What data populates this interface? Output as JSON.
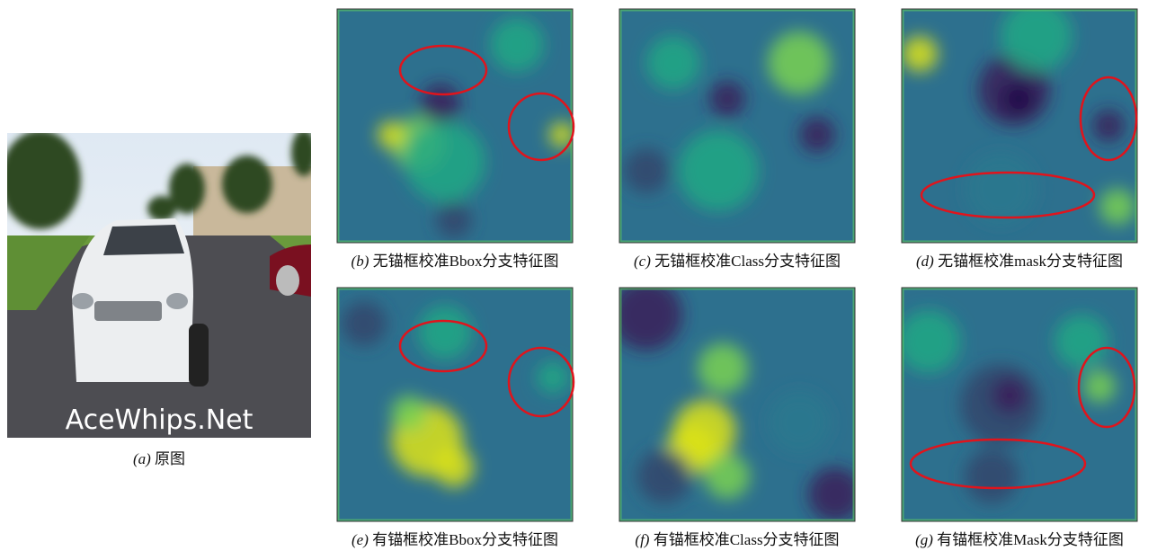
{
  "photo": {
    "watermark": "AceWhips.Net",
    "label": "(a)",
    "caption": "原图"
  },
  "panels": [
    {
      "label": "(b)",
      "caption": "无锚框校准Bbox分支特征图"
    },
    {
      "label": "(c)",
      "caption": "无锚框校准Class分支特征图"
    },
    {
      "label": "(d)",
      "caption": "无锚框校准mask分支特征图"
    },
    {
      "label": "(e)",
      "caption": "有锚框校准Bbox分支特征图"
    },
    {
      "label": "(f)",
      "caption": "有锚框校准Class分支特征图"
    },
    {
      "label": "(g)",
      "caption": "有锚框校准Mask分支特征图"
    }
  ]
}
